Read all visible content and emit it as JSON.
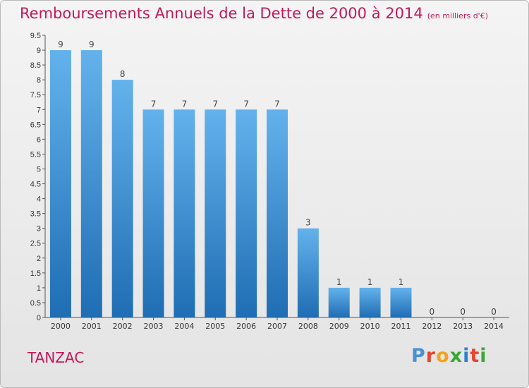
{
  "title": "Remboursements Annuels de la Dette de 2000 à 2014",
  "subtitle": "(en milliers d'€)",
  "commune": "TANZAC",
  "logo": {
    "letters": [
      "P",
      "r",
      "o",
      "x",
      "i",
      "t",
      "i"
    ],
    "colors": [
      "#4a8fd6",
      "#e8452c",
      "#f2a51a",
      "#3aa635",
      "#2f7fd0",
      "#e8452c",
      "#3aa635"
    ]
  },
  "colors": {
    "bar": "#3b8fd6",
    "bar_light": "#64b2ec",
    "bar_dark": "#1f6db3",
    "title": "#c2185b"
  },
  "chart_data": {
    "type": "bar",
    "categories": [
      "2000",
      "2001",
      "2002",
      "2003",
      "2004",
      "2005",
      "2006",
      "2007",
      "2008",
      "2009",
      "2010",
      "2011",
      "2012",
      "2013",
      "2014"
    ],
    "values": [
      9,
      9,
      8,
      7,
      7,
      7,
      7,
      7,
      3,
      1,
      1,
      1,
      0,
      0,
      0
    ],
    "value_labels": [
      "9",
      "9",
      "8",
      "7",
      "7",
      "7",
      "7",
      "7",
      "3",
      "1",
      "1",
      "1",
      "0",
      "0",
      "0"
    ],
    "yticks": [
      "0",
      "0.5",
      "1",
      "1.5",
      "2",
      "2.5",
      "3",
      "3.5",
      "4",
      "4.5",
      "5",
      "5.5",
      "6",
      "6.5",
      "7",
      "7.5",
      "8",
      "8.5",
      "9",
      "9.5"
    ],
    "ylim": [
      0,
      9.5
    ],
    "grid": false
  }
}
